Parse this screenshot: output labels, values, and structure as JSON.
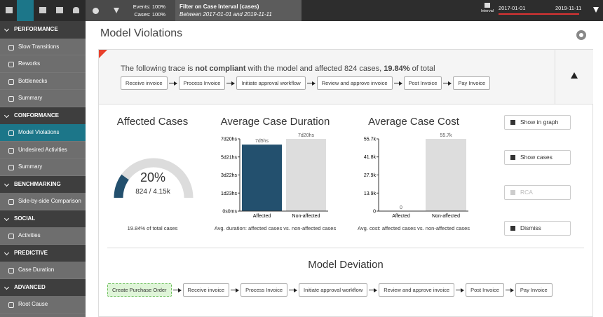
{
  "topbar": {
    "events": "Events: 100%",
    "cases": "Cases: 100%",
    "filter_title": "Filter on Case Interval (cases)",
    "filter_sub": "Between 2017-01-01 and 2019-11-11",
    "interval_label": "Interval",
    "interval_start": "2017-01-01",
    "interval_end": "2019-11-11"
  },
  "sidebar": {
    "active_item": "Model Violations",
    "sections": [
      {
        "title": "PERFORMANCE",
        "items": [
          "Slow Transitions",
          "Reworks",
          "Bottlenecks",
          "Summary"
        ]
      },
      {
        "title": "CONFORMANCE",
        "items": [
          "Model Violations",
          "Undesired Activities",
          "Summary"
        ]
      },
      {
        "title": "BENCHMARKING",
        "items": [
          "Side-by-side Comparison"
        ]
      },
      {
        "title": "SOCIAL",
        "items": [
          "Activities"
        ]
      },
      {
        "title": "PREDICTIVE",
        "items": [
          "Case Duration"
        ]
      },
      {
        "title": "ADVANCED",
        "items": [
          "Root Cause"
        ]
      }
    ]
  },
  "page_title": "Model Violations",
  "trace": {
    "text_parts": [
      "The following trace is ",
      "not compliant",
      " with the model and affected 824 cases, ",
      "19.84%",
      " of total"
    ],
    "steps": [
      "Receive invoice",
      "Process Invoice",
      "Initiate approval workflow",
      "Review and approve invoice",
      "Post Invoice",
      "Pay Invoice"
    ]
  },
  "affected": {
    "title": "Affected Cases",
    "gauge": {
      "value": 20,
      "label": "20%"
    },
    "count": "824 / 4.15k",
    "caption": "19.84% of total cases"
  },
  "duration": {
    "title": "Average Case Duration",
    "categories": [
      "Affected",
      "Non-affected"
    ],
    "values": [
      173,
      188
    ],
    "value_labels": [
      "7d5hs",
      "7d20hs"
    ],
    "colors": [
      "#23506e",
      "#dddddd"
    ],
    "ylim": [
      0,
      188
    ],
    "yticks": [
      {
        "value": 0,
        "label": "0s0ms"
      },
      {
        "value": 47,
        "label": "1d23hs"
      },
      {
        "value": 94,
        "label": "3d22hs"
      },
      {
        "value": 141,
        "label": "5d21hs"
      },
      {
        "value": 188,
        "label": "7d20hs"
      }
    ],
    "caption": "Avg. duration: affected cases vs. non-affected cases"
  },
  "cost": {
    "title": "Average Case Cost",
    "categories": [
      "Affected",
      "Non-affected"
    ],
    "values": [
      0,
      55700
    ],
    "value_labels": [
      "0",
      "55.7k"
    ],
    "colors": [
      "#23506e",
      "#dddddd"
    ],
    "ylim": [
      0,
      55700
    ],
    "yticks": [
      {
        "value": 0,
        "label": "0"
      },
      {
        "value": 13900,
        "label": "13.9k"
      },
      {
        "value": 27900,
        "label": "27.9k"
      },
      {
        "value": 41800,
        "label": "41.8k"
      },
      {
        "value": 55700,
        "label": "55.7k"
      }
    ],
    "caption": "Avg. cost: affected cases vs. non-affected cases"
  },
  "buttons": [
    "Show in graph",
    "Show cases",
    "RCA",
    "Dismiss"
  ],
  "deviation": {
    "title": "Model Deviation",
    "steps": [
      "Create Purchase Order",
      "Receive invoice",
      "Process Invoice",
      "Initiate approval workflow",
      "Review and approve invoice",
      "Post Invoice",
      "Pay Invoice"
    ]
  }
}
